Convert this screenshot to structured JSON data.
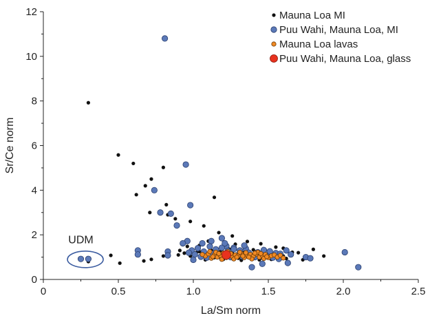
{
  "chart_data": {
    "type": "scatter",
    "xlabel": "La/Sm norm",
    "ylabel": "Sr/Ce norm",
    "xlim": [
      0,
      2.5
    ],
    "ylim": [
      0,
      12
    ],
    "xticks": [
      "0",
      "0.5",
      "1.0",
      "1.5",
      "2.0",
      "2.5"
    ],
    "xtick_values": [
      0,
      0.5,
      1.0,
      1.5,
      2.0,
      2.5
    ],
    "yticks": [
      "0",
      "2",
      "4",
      "6",
      "8",
      "10",
      "12"
    ],
    "ytick_values": [
      0,
      2,
      4,
      6,
      8,
      10,
      12
    ],
    "grid": false,
    "legend_position": "top-right",
    "annotation": {
      "text": "UDM",
      "x": 0.25,
      "y": 1.62,
      "ellipse_center": [
        0.28,
        0.9
      ]
    },
    "series": [
      {
        "name": "Mauna Loa MI",
        "color": "#111111",
        "points": [
          [
            0.3,
            7.92
          ],
          [
            0.5,
            5.58
          ],
          [
            0.6,
            5.2
          ],
          [
            0.68,
            4.2
          ],
          [
            0.72,
            4.5
          ],
          [
            0.62,
            3.8
          ],
          [
            0.8,
            5.02
          ],
          [
            0.82,
            3.35
          ],
          [
            0.78,
            3.02
          ],
          [
            0.83,
            2.9
          ],
          [
            0.71,
            3.0
          ],
          [
            0.88,
            2.72
          ],
          [
            0.98,
            2.6
          ],
          [
            1.14,
            3.68
          ],
          [
            1.07,
            2.4
          ],
          [
            0.45,
            1.08
          ],
          [
            0.51,
            0.73
          ],
          [
            0.67,
            0.83
          ],
          [
            0.72,
            0.9
          ],
          [
            0.3,
            0.8
          ],
          [
            0.8,
            1.05
          ],
          [
            1.17,
            2.1
          ],
          [
            1.8,
            1.35
          ],
          [
            1.87,
            1.05
          ],
          [
            1.76,
            1.0
          ],
          [
            1.73,
            0.88
          ],
          [
            1.66,
            1.22
          ],
          [
            1.6,
            1.4
          ],
          [
            1.45,
            1.6
          ],
          [
            1.28,
            1.58
          ],
          [
            1.1,
            1.72
          ],
          [
            1.04,
            1.52
          ],
          [
            0.96,
            1.48
          ],
          [
            0.91,
            1.3
          ],
          [
            1.55,
            1.45
          ],
          [
            1.36,
            1.7
          ],
          [
            1.26,
            1.95
          ],
          [
            0.98,
            1.05
          ],
          [
            1.02,
            1.2
          ],
          [
            1.06,
            1.0
          ],
          [
            1.1,
            1.15
          ],
          [
            1.14,
            0.98
          ],
          [
            1.18,
            1.25
          ],
          [
            1.22,
            1.05
          ],
          [
            1.26,
            1.18
          ],
          [
            1.3,
            0.95
          ],
          [
            1.34,
            1.22
          ],
          [
            1.38,
            1.06
          ],
          [
            1.42,
            1.25
          ],
          [
            1.46,
            0.96
          ],
          [
            1.5,
            1.18
          ],
          [
            1.54,
            1.04
          ],
          [
            1.58,
            1.12
          ],
          [
            1.62,
            0.94
          ],
          [
            1.12,
            1.3
          ],
          [
            1.24,
            1.36
          ],
          [
            1.4,
            1.33
          ],
          [
            1.48,
            1.31
          ],
          [
            1.0,
            0.92
          ],
          [
            1.08,
            0.88
          ],
          [
            1.2,
            0.9
          ],
          [
            1.32,
            0.86
          ],
          [
            1.44,
            0.88
          ],
          [
            1.52,
            0.9
          ],
          [
            1.6,
            1.05
          ],
          [
            1.16,
            1.1
          ],
          [
            1.28,
            1.12
          ],
          [
            1.36,
            1.16
          ],
          [
            1.04,
            1.25
          ],
          [
            0.94,
            1.18
          ],
          [
            0.9,
            1.1
          ],
          [
            1.7,
            1.2
          ]
        ]
      },
      {
        "name": "Puu Wahi, Mauna Loa, MI",
        "color": "#5b79b8",
        "points": [
          [
            0.81,
            10.8
          ],
          [
            0.95,
            5.15
          ],
          [
            0.74,
            4.0
          ],
          [
            0.98,
            3.33
          ],
          [
            0.78,
            3.0
          ],
          [
            0.85,
            2.95
          ],
          [
            0.89,
            2.42
          ],
          [
            0.25,
            0.92
          ],
          [
            0.3,
            0.92
          ],
          [
            0.63,
            1.3
          ],
          [
            0.63,
            1.12
          ],
          [
            0.83,
            1.25
          ],
          [
            0.83,
            1.08
          ],
          [
            0.96,
            1.72
          ],
          [
            0.93,
            1.62
          ],
          [
            1.12,
            1.72
          ],
          [
            1.19,
            1.85
          ],
          [
            1.06,
            1.62
          ],
          [
            1.22,
            1.5
          ],
          [
            1.35,
            1.38
          ],
          [
            1.27,
            1.42
          ],
          [
            1.39,
            0.55
          ],
          [
            1.46,
            0.7
          ],
          [
            1.63,
            0.74
          ],
          [
            1.75,
            1.0
          ],
          [
            1.78,
            0.95
          ],
          [
            2.01,
            1.22
          ],
          [
            2.1,
            0.55
          ],
          [
            0.99,
            1.3
          ],
          [
            1.03,
            1.4
          ],
          [
            1.07,
            1.25
          ],
          [
            1.11,
            1.48
          ],
          [
            1.15,
            1.35
          ],
          [
            1.19,
            1.42
          ],
          [
            1.23,
            1.28
          ],
          [
            1.27,
            1.36
          ],
          [
            1.31,
            1.3
          ],
          [
            1.43,
            1.22
          ],
          [
            1.47,
            1.32
          ],
          [
            1.51,
            1.26
          ],
          [
            1.55,
            1.18
          ],
          [
            1.58,
            1.15
          ],
          [
            1.01,
            1.12
          ],
          [
            1.05,
            1.02
          ],
          [
            1.09,
            0.98
          ],
          [
            1.13,
            1.15
          ],
          [
            1.17,
            1.05
          ],
          [
            1.25,
            1.0
          ],
          [
            1.29,
            1.08
          ],
          [
            1.33,
            1.02
          ],
          [
            1.37,
            1.2
          ],
          [
            1.41,
            1.0
          ],
          [
            1.45,
            1.1
          ],
          [
            1.49,
            1.04
          ],
          [
            1.53,
            0.98
          ],
          [
            1.57,
            0.92
          ],
          [
            1.62,
            1.3
          ],
          [
            1.65,
            1.12
          ],
          [
            0.97,
            1.2
          ],
          [
            1.0,
            0.88
          ],
          [
            1.21,
            1.62
          ],
          [
            1.34,
            1.52
          ]
        ]
      },
      {
        "name": "Mauna Loa lavas",
        "color": "#f08a24",
        "points": [
          [
            1.08,
            1.05
          ],
          [
            1.1,
            1.15
          ],
          [
            1.12,
            0.95
          ],
          [
            1.14,
            1.1
          ],
          [
            1.16,
            1.0
          ],
          [
            1.18,
            1.08
          ],
          [
            1.2,
            1.18
          ],
          [
            1.22,
            0.98
          ],
          [
            1.24,
            1.12
          ],
          [
            1.26,
            1.02
          ],
          [
            1.28,
            1.1
          ],
          [
            1.3,
            1.06
          ],
          [
            1.32,
            1.15
          ],
          [
            1.34,
            0.98
          ],
          [
            1.36,
            1.08
          ],
          [
            1.38,
            1.12
          ],
          [
            1.4,
            1.04
          ],
          [
            1.42,
            1.14
          ],
          [
            1.44,
            1.0
          ],
          [
            1.46,
            1.08
          ],
          [
            1.48,
            1.12
          ],
          [
            1.5,
            0.98
          ],
          [
            1.52,
            1.06
          ],
          [
            1.54,
            1.1
          ],
          [
            1.11,
            1.25
          ],
          [
            1.15,
            1.22
          ],
          [
            1.19,
            0.9
          ],
          [
            1.23,
            1.25
          ],
          [
            1.27,
            0.92
          ],
          [
            1.31,
            1.22
          ],
          [
            1.35,
            1.2
          ],
          [
            1.39,
            0.92
          ],
          [
            1.43,
            1.22
          ],
          [
            1.47,
            0.94
          ],
          [
            1.13,
            1.02
          ],
          [
            1.17,
            1.16
          ],
          [
            1.21,
            1.06
          ],
          [
            1.25,
            1.16
          ],
          [
            1.29,
            1.0
          ],
          [
            1.33,
            1.05
          ],
          [
            1.37,
            1.0
          ],
          [
            1.41,
            1.18
          ],
          [
            1.45,
            1.16
          ],
          [
            1.49,
            1.02
          ],
          [
            1.06,
            1.12
          ],
          [
            1.56,
            1.0
          ],
          [
            1.58,
            1.08
          ],
          [
            1.6,
            0.96
          ]
        ]
      },
      {
        "name": "Puu Wahi, Mauna Loa, glass",
        "color": "#e8321e",
        "points": [
          [
            1.22,
            1.1
          ]
        ]
      }
    ]
  }
}
